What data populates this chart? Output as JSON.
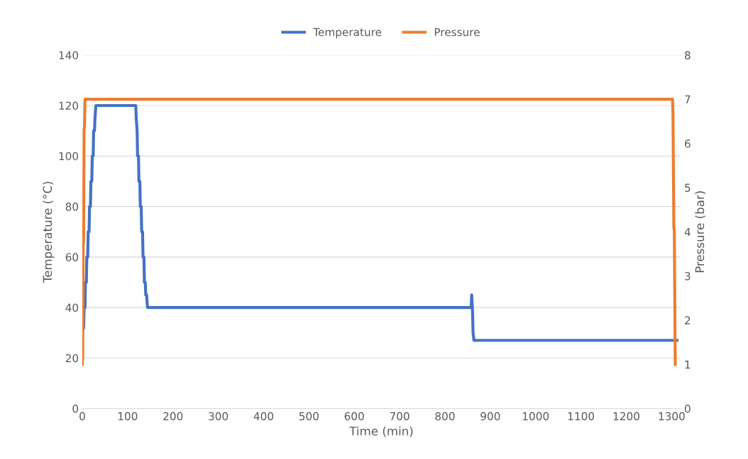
{
  "chart_data": {
    "type": "line",
    "xlabel": "Time (min)",
    "ylabel": "Temperature (°C)",
    "y2label": "Pressure (bar)",
    "xlim": [
      0,
      1320
    ],
    "xticks": [
      0,
      100,
      200,
      300,
      400,
      500,
      600,
      700,
      800,
      900,
      1000,
      1100,
      1200,
      1300
    ],
    "ylim": [
      0,
      140
    ],
    "yticks": [
      0,
      20,
      40,
      60,
      80,
      100,
      120,
      140
    ],
    "y2lim": [
      0,
      8
    ],
    "y2ticks": [
      0,
      1,
      2,
      3,
      4,
      5,
      6,
      7,
      8
    ],
    "grid": "y",
    "legend": "top",
    "marker": "none",
    "line_style": "solid",
    "series": [
      {
        "name": "Temperature",
        "color": "#4472c4",
        "x": [
          3,
          4,
          6,
          7,
          9,
          10,
          12,
          13,
          15,
          16,
          18,
          19,
          21,
          22,
          24,
          25,
          27,
          28,
          30,
          118,
          119,
          121,
          122,
          124,
          125,
          127,
          128,
          130,
          131,
          133,
          134,
          136,
          137,
          139,
          140,
          142,
          143,
          144,
          145,
          858,
          859,
          861,
          862,
          864,
          1312
        ],
        "values": [
          32,
          40,
          40,
          50,
          50,
          60,
          60,
          70,
          70,
          80,
          80,
          90,
          90,
          100,
          100,
          110,
          110,
          115,
          120,
          120,
          115,
          110,
          100,
          100,
          90,
          90,
          80,
          80,
          70,
          70,
          60,
          60,
          50,
          50,
          45,
          45,
          42,
          40,
          40,
          40,
          45,
          38,
          30,
          27,
          27
        ]
      },
      {
        "name": "Pressure",
        "color": "#ed7d31",
        "axis": "y2",
        "x": [
          0,
          1,
          2,
          3,
          4,
          5,
          6,
          1302,
          1303,
          1305,
          1306,
          1308
        ],
        "values": [
          1,
          1.2,
          3.7,
          3.8,
          6.3,
          6.4,
          7,
          7,
          6.7,
          4.1,
          4,
          1
        ]
      }
    ]
  }
}
